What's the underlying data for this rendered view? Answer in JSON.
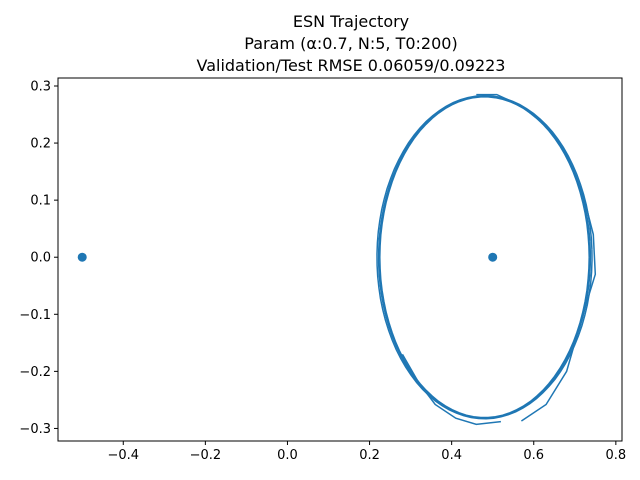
{
  "chart_data": {
    "type": "scatter",
    "title_lines": [
      "ESN Trajectory",
      "Param (α:0.7, N:5, T0:200)",
      "Validation/Test RMSE 0.06059/0.09223"
    ],
    "xlabel": "",
    "ylabel": "",
    "xlim": [
      -0.559,
      0.815
    ],
    "ylim": [
      -0.322,
      0.314
    ],
    "xticks": [
      -0.4,
      -0.2,
      0.0,
      0.2,
      0.4,
      0.6,
      0.8
    ],
    "xtick_labels": [
      "−0.4",
      "−0.2",
      "0.0",
      "0.2",
      "0.4",
      "0.6",
      "0.8"
    ],
    "yticks": [
      -0.3,
      -0.2,
      -0.1,
      0.0,
      0.1,
      0.2,
      0.3
    ],
    "ytick_labels": [
      "−0.3",
      "−0.2",
      "−0.1",
      "0.0",
      "0.1",
      "0.2",
      "0.3"
    ],
    "grid": false,
    "color": "#1f77b4",
    "points": [
      {
        "x": -0.5,
        "y": 0.0
      },
      {
        "x": 0.5,
        "y": 0.0
      }
    ],
    "trajectory": {
      "shape": "closed loop",
      "center": [
        0.48,
        0.0
      ],
      "x_radius": 0.255,
      "y_radius": 0.283,
      "loops": [
        {
          "x_radius": 0.255,
          "y_radius": 0.281,
          "phase": 0.0
        },
        {
          "x_radius": 0.262,
          "y_radius": 0.283,
          "phase": 0.05
        },
        {
          "x_radius": 0.258,
          "y_radius": 0.282,
          "phase": 0.1
        }
      ],
      "outer_excursion": [
        [
          0.57,
          -0.287
        ],
        [
          0.63,
          -0.258
        ],
        [
          0.68,
          -0.2
        ],
        [
          0.72,
          -0.1
        ],
        [
          0.75,
          -0.03
        ],
        [
          0.745,
          0.04
        ],
        [
          0.72,
          0.11
        ],
        [
          0.68,
          0.18
        ],
        [
          0.63,
          0.23
        ],
        [
          0.57,
          0.265
        ],
        [
          0.51,
          0.285
        ],
        [
          0.46,
          0.285
        ]
      ],
      "inner_tail": [
        [
          0.28,
          -0.17
        ],
        [
          0.32,
          -0.22
        ],
        [
          0.36,
          -0.258
        ],
        [
          0.41,
          -0.282
        ],
        [
          0.46,
          -0.293
        ],
        [
          0.52,
          -0.288
        ]
      ]
    }
  }
}
